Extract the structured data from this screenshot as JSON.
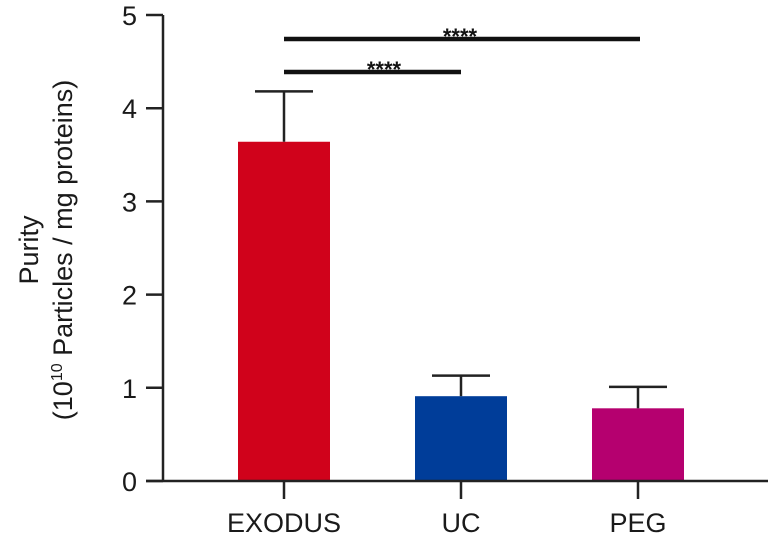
{
  "chart_data": {
    "type": "bar",
    "title": "",
    "xlabel": "",
    "ylabel": "Purity",
    "ylabel_line2": "(10^10 Particles / mg proteins)",
    "ylabel_unit_base": "10",
    "ylabel_unit_exp": "10",
    "ylabel_unit_rest": " Particles / mg proteins)",
    "ylim": [
      0,
      5
    ],
    "yticks": [
      "0",
      "1",
      "2",
      "3",
      "4",
      "5"
    ],
    "categories": [
      "EXODUS",
      "UC",
      "PEG"
    ],
    "values": [
      3.64,
      0.91,
      0.78
    ],
    "error_upper": [
      0.54,
      0.22,
      0.23
    ],
    "colors": [
      "#d0021b",
      "#003d99",
      "#b5006f"
    ],
    "grid": false,
    "legend": "none",
    "annotations": [
      {
        "from": "EXODUS",
        "to": "UC",
        "label": "****"
      },
      {
        "from": "EXODUS",
        "to": "PEG",
        "label": "****"
      }
    ]
  }
}
